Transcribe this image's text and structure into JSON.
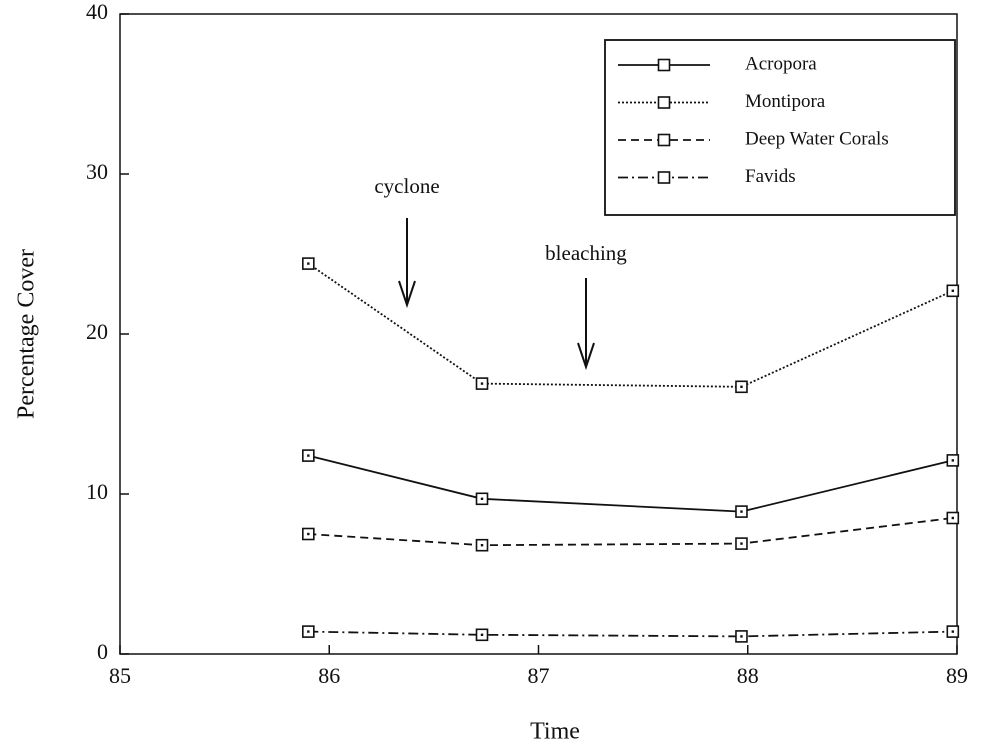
{
  "chart_data": {
    "type": "line",
    "x_label": "Time",
    "y_label": "Percentage Cover",
    "x": [
      85.9,
      86.73,
      87.97,
      88.98
    ],
    "series": [
      {
        "name": "Acropora",
        "color": "#111111",
        "linestyle": "solid",
        "values": [
          12.4,
          9.7,
          8.9,
          12.1
        ]
      },
      {
        "name": "Montipora",
        "color": "#111111",
        "linestyle": "dotted",
        "values": [
          24.4,
          16.9,
          16.7,
          22.7
        ]
      },
      {
        "name": "Deep Water Corals",
        "color": "#111111",
        "linestyle": "dashed",
        "values": [
          7.5,
          6.8,
          6.9,
          8.5
        ]
      },
      {
        "name": "Favids",
        "color": "#111111",
        "linestyle": "dashdot",
        "values": [
          1.4,
          1.2,
          1.1,
          1.4
        ]
      }
    ],
    "xlim": [
      85,
      89
    ],
    "xticks": [
      85,
      86,
      87,
      88,
      89
    ],
    "ylim": [
      0,
      40
    ],
    "yticks": [
      0,
      10,
      20,
      30,
      40
    ],
    "legend": "upper right",
    "annotations": [
      "cyclone",
      "bleaching"
    ]
  }
}
